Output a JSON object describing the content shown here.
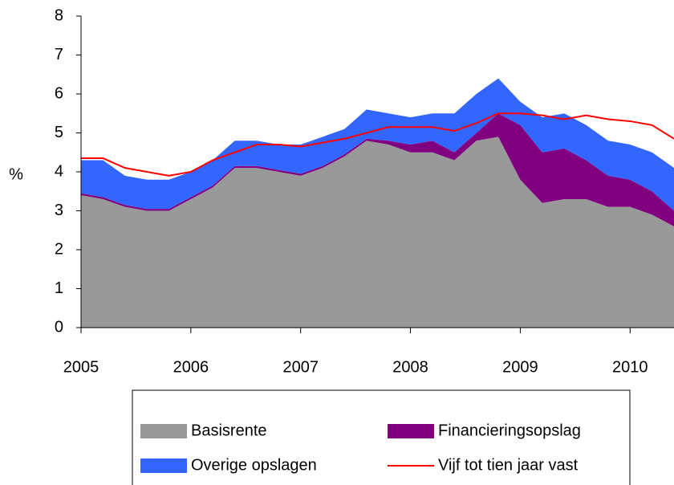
{
  "chart_data": {
    "type": "area",
    "y_label": "%",
    "x": [
      2005.0,
      2005.2,
      2005.4,
      2005.6,
      2005.8,
      2006.0,
      2006.2,
      2006.4,
      2006.6,
      2006.8,
      2007.0,
      2007.2,
      2007.4,
      2007.6,
      2007.8,
      2008.0,
      2008.2,
      2008.4,
      2008.6,
      2008.8,
      2009.0,
      2009.2,
      2009.4,
      2009.6,
      2009.8,
      2010.0,
      2010.2,
      2010.4
    ],
    "series": [
      {
        "name": "Basisrente",
        "color": "#999999",
        "values": [
          3.4,
          3.3,
          3.1,
          3.0,
          3.0,
          3.3,
          3.6,
          4.1,
          4.1,
          4.0,
          3.9,
          4.1,
          4.4,
          4.8,
          4.7,
          4.5,
          4.5,
          4.3,
          4.8,
          4.9,
          3.8,
          3.2,
          3.3,
          3.3,
          3.1,
          3.1,
          2.9,
          2.6
        ]
      },
      {
        "name": "Financieringsopslag",
        "color": "#800080",
        "values": [
          0.05,
          0.05,
          0.05,
          0.05,
          0.05,
          0.05,
          0.05,
          0.05,
          0.05,
          0.05,
          0.05,
          0.05,
          0.05,
          0.05,
          0.1,
          0.2,
          0.3,
          0.2,
          0.2,
          0.6,
          1.4,
          1.3,
          1.3,
          1.0,
          0.8,
          0.7,
          0.6,
          0.4
        ]
      },
      {
        "name": "Overige opslagen",
        "color": "#3366ff",
        "values": [
          0.85,
          0.95,
          0.75,
          0.75,
          0.75,
          0.65,
          0.65,
          0.65,
          0.65,
          0.65,
          0.75,
          0.75,
          0.65,
          0.75,
          0.7,
          0.7,
          0.7,
          1.0,
          1.0,
          0.9,
          0.6,
          0.9,
          0.9,
          0.9,
          0.9,
          0.9,
          1.0,
          1.1
        ]
      },
      {
        "name": "Vijf tot tien jaar vast",
        "color": "#ff0000",
        "type": "line",
        "values": [
          4.35,
          4.35,
          4.1,
          4.0,
          3.9,
          4.0,
          4.3,
          4.5,
          4.7,
          4.7,
          4.65,
          4.75,
          4.85,
          5.0,
          5.15,
          5.15,
          5.15,
          5.05,
          5.25,
          5.5,
          5.5,
          5.45,
          5.35,
          5.45,
          5.35,
          5.3,
          5.2,
          4.85
        ]
      }
    ],
    "xlim": [
      2005,
      2010.4
    ],
    "xticks": [
      2005,
      2006,
      2007,
      2008,
      2009,
      2010
    ],
    "ylim": [
      0,
      8
    ],
    "yticks": [
      0,
      1,
      2,
      3,
      4,
      5,
      6,
      7,
      8
    ],
    "legend": "bottom"
  }
}
